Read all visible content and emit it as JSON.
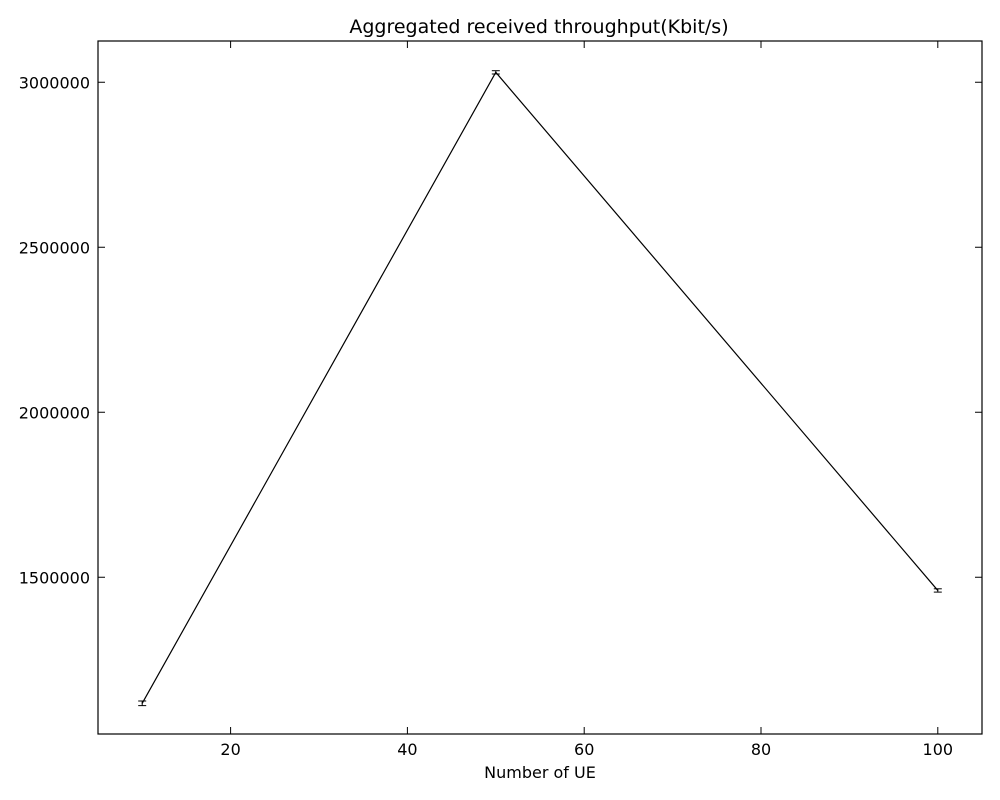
{
  "chart_data": {
    "type": "line",
    "title": "Aggregated received throughput(Kbit/s)",
    "xlabel": "Number of UE",
    "ylabel": "",
    "xlim": [
      5,
      105
    ],
    "ylim": [
      1025000,
      3125000
    ],
    "xticks": [
      20,
      40,
      60,
      80,
      100
    ],
    "yticks": [
      1500000,
      2000000,
      2500000,
      3000000
    ],
    "grid": false,
    "series": [
      {
        "x": [
          10,
          50,
          100
        ],
        "y": [
          1118000,
          3030000,
          1460000
        ],
        "yerr": [
          7000,
          5000,
          5000
        ],
        "color": "#000000"
      }
    ]
  }
}
